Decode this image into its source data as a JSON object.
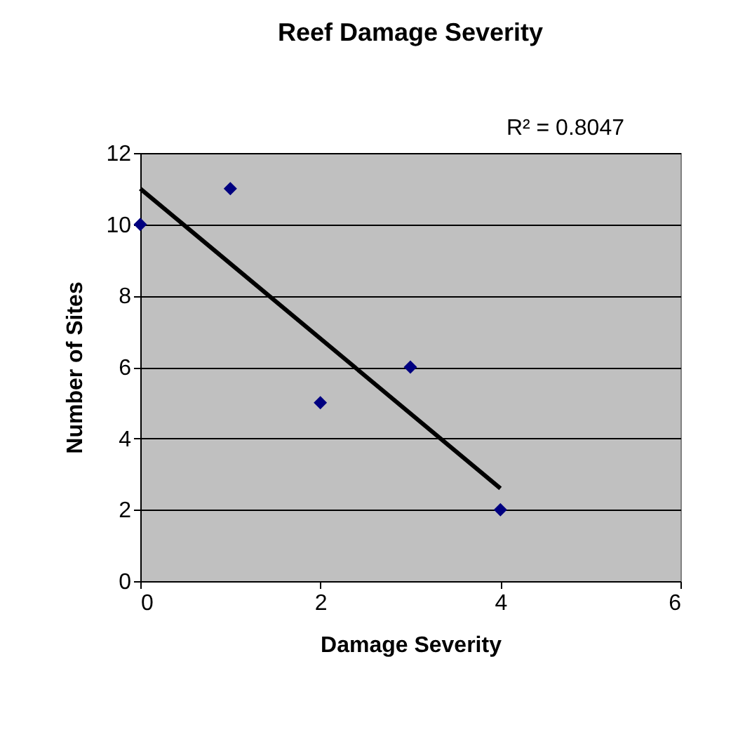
{
  "chart_data": {
    "type": "scatter",
    "title": "Reef Damage Severity",
    "xlabel": "Damage Severity",
    "ylabel": "Number of Sites",
    "annotations": [
      "R² = 0.8047"
    ],
    "x": [
      0,
      1,
      2,
      3,
      4
    ],
    "series": [
      {
        "color": "#000080",
        "values": [
          10,
          11,
          5,
          6,
          2
        ],
        "marker": "diamond"
      },
      {
        "type": "line",
        "color": "#000000",
        "x": [
          0,
          4
        ],
        "values": [
          11,
          2.6
        ],
        "line_style": "solid"
      }
    ],
    "xlim": [
      0,
      6
    ],
    "xticks": [
      0,
      2,
      4,
      6
    ],
    "ylim": [
      0,
      12
    ],
    "yticks": [
      0,
      2,
      4,
      6,
      8,
      10,
      12
    ],
    "grid": "y"
  }
}
